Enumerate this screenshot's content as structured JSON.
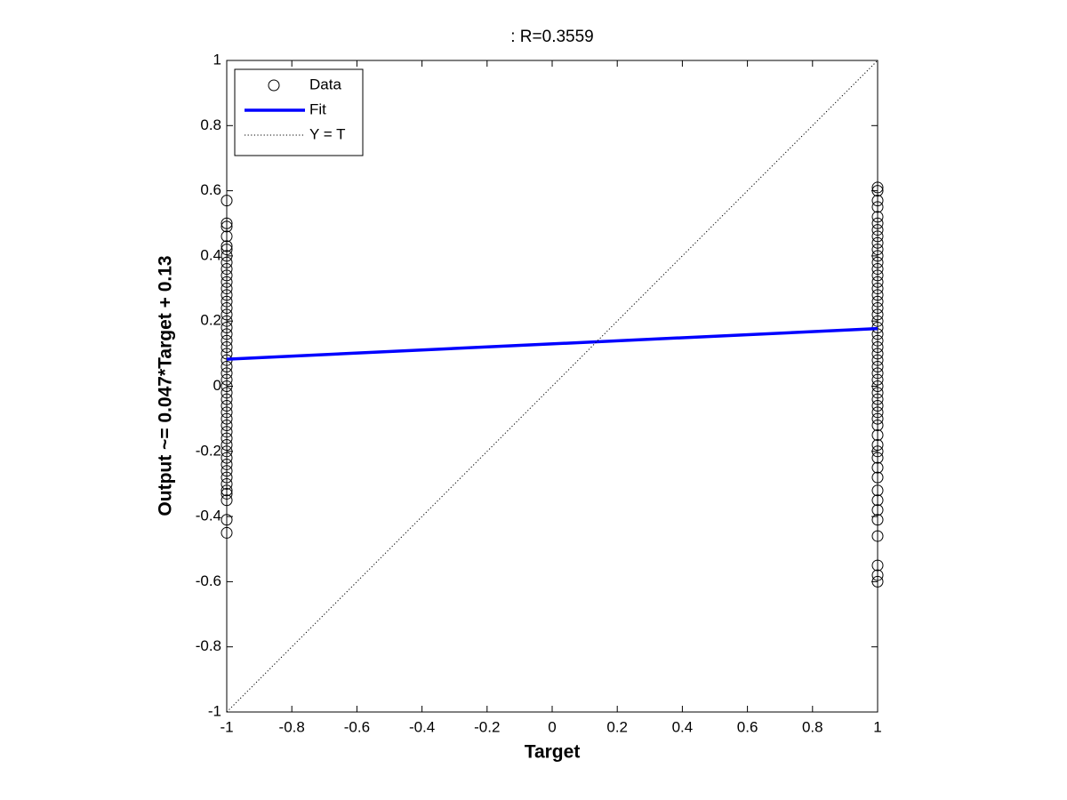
{
  "chart_data": {
    "type": "scatter",
    "title": ": R=0.3559",
    "xlabel": "Target",
    "ylabel": "Output ~= 0.047*Target + 0.13",
    "xlim": [
      -1,
      1
    ],
    "ylim": [
      -1,
      1
    ],
    "xticks": [
      -1,
      -0.8,
      -0.6,
      -0.4,
      -0.2,
      0,
      0.2,
      0.4,
      0.6,
      0.8,
      1
    ],
    "yticks": [
      -1,
      -0.8,
      -0.6,
      -0.4,
      -0.2,
      0,
      0.2,
      0.4,
      0.6,
      0.8,
      1
    ],
    "grid": false,
    "legend": "northwest",
    "series": [
      {
        "name": "Data",
        "color": "#000000",
        "marker": "circle",
        "x": [
          -1,
          -1,
          -1,
          -1,
          -1,
          -1,
          -1,
          -1,
          -1,
          -1,
          -1,
          -1,
          -1,
          -1,
          -1,
          -1,
          -1,
          -1,
          -1,
          -1,
          -1,
          -1,
          -1,
          -1,
          -1,
          -1,
          -1,
          -1,
          -1,
          -1,
          -1,
          -1,
          -1,
          -1,
          -1,
          -1,
          -1,
          -1,
          -1,
          -1,
          -1,
          -1,
          -1,
          -1,
          -1,
          -1,
          -1,
          1,
          1,
          1,
          1,
          1,
          1,
          1,
          1,
          1,
          1,
          1,
          1,
          1,
          1,
          1,
          1,
          1,
          1,
          1,
          1,
          1,
          1,
          1,
          1,
          1,
          1,
          1,
          1,
          1,
          1,
          1,
          1,
          1,
          1,
          1,
          1,
          1,
          1,
          1,
          1,
          1,
          1,
          1,
          1,
          1,
          1,
          1,
          1,
          1,
          1,
          1
        ],
        "values": [
          0.57,
          0.5,
          0.49,
          0.46,
          0.43,
          0.42,
          0.4,
          0.38,
          0.36,
          0.34,
          0.32,
          0.3,
          0.28,
          0.26,
          0.24,
          0.22,
          0.2,
          0.18,
          0.16,
          0.14,
          0.12,
          0.1,
          0.08,
          0.06,
          0.04,
          0.02,
          0,
          -0.02,
          -0.04,
          -0.06,
          -0.08,
          -0.1,
          -0.12,
          -0.14,
          -0.16,
          -0.18,
          -0.2,
          -0.22,
          -0.24,
          -0.26,
          -0.28,
          -0.3,
          -0.32,
          -0.33,
          -0.35,
          -0.41,
          -0.45,
          0.61,
          0.6,
          0.57,
          0.55,
          0.52,
          0.5,
          0.48,
          0.46,
          0.44,
          0.42,
          0.4,
          0.38,
          0.36,
          0.34,
          0.32,
          0.3,
          0.28,
          0.26,
          0.24,
          0.22,
          0.2,
          0.18,
          0.16,
          0.14,
          0.12,
          0.1,
          0.08,
          0.06,
          0.04,
          0.02,
          0,
          -0.02,
          -0.04,
          -0.06,
          -0.08,
          -0.1,
          -0.12,
          -0.15,
          -0.18,
          -0.2,
          -0.22,
          -0.25,
          -0.28,
          -0.32,
          -0.35,
          -0.38,
          -0.41,
          -0.46,
          -0.55,
          -0.58,
          -0.6
        ]
      },
      {
        "name": "Fit",
        "color": "#0000ff",
        "line": "solid",
        "x": [
          -1,
          1
        ],
        "values": [
          0.083,
          0.177
        ]
      },
      {
        "name": "Y = T",
        "color": "#000000",
        "line": "dotted",
        "x": [
          -1,
          1
        ],
        "values": [
          -1,
          1
        ]
      }
    ]
  }
}
